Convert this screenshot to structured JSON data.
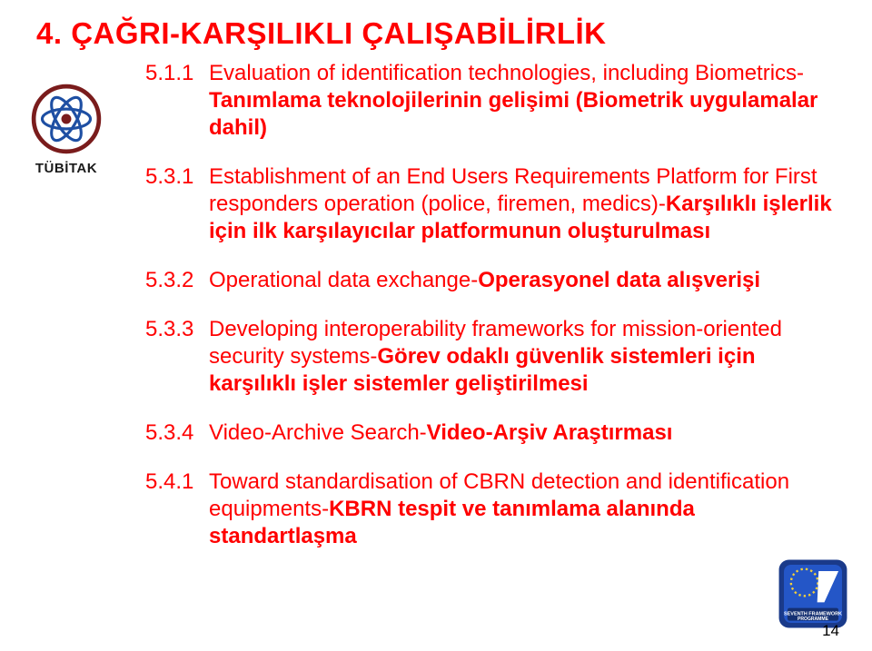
{
  "title": "4. ÇAĞRI-KARŞILIKLI ÇALIŞABİLİRLİK",
  "items": [
    {
      "num": "5.1.1",
      "text": "Evaluation of identification technologies, including Biometrics-",
      "bold": "Tanımlama teknolojilerinin gelişimi (Biometrik uygulamalar dahil)"
    },
    {
      "num": "5.3.1",
      "text": "Establishment of an End Users Requirements Platform for First responders operation (police, firemen, medics)-",
      "bold": "Karşılıklı işlerlik için ilk karşılayıcılar platformunun oluşturulması"
    },
    {
      "num": "5.3.2",
      "text": "Operational data exchange-",
      "bold": "Operasyonel data alışverişi"
    },
    {
      "num": "5.3.3",
      "text": "Developing interoperability frameworks for mission-oriented security systems-",
      "bold": "Görev odaklı güvenlik sistemleri için karşılıklı işler sistemler geliştirilmesi"
    },
    {
      "num": "5.3.4",
      "text": "Video-Archive Search-",
      "bold": "Video-Arşiv Araştırması"
    },
    {
      "num": "5.4.1",
      "text": "Toward standardisation of CBRN detection and identification equipments-",
      "bold": "KBRN tespit ve tanımlama alanında standartlaşma"
    }
  ],
  "left_logo_label": "TÜBİTAK",
  "page_number": "14",
  "colors": {
    "title": "#ff0000",
    "body_text": "#ff0000",
    "page_bg": "#ffffff"
  }
}
